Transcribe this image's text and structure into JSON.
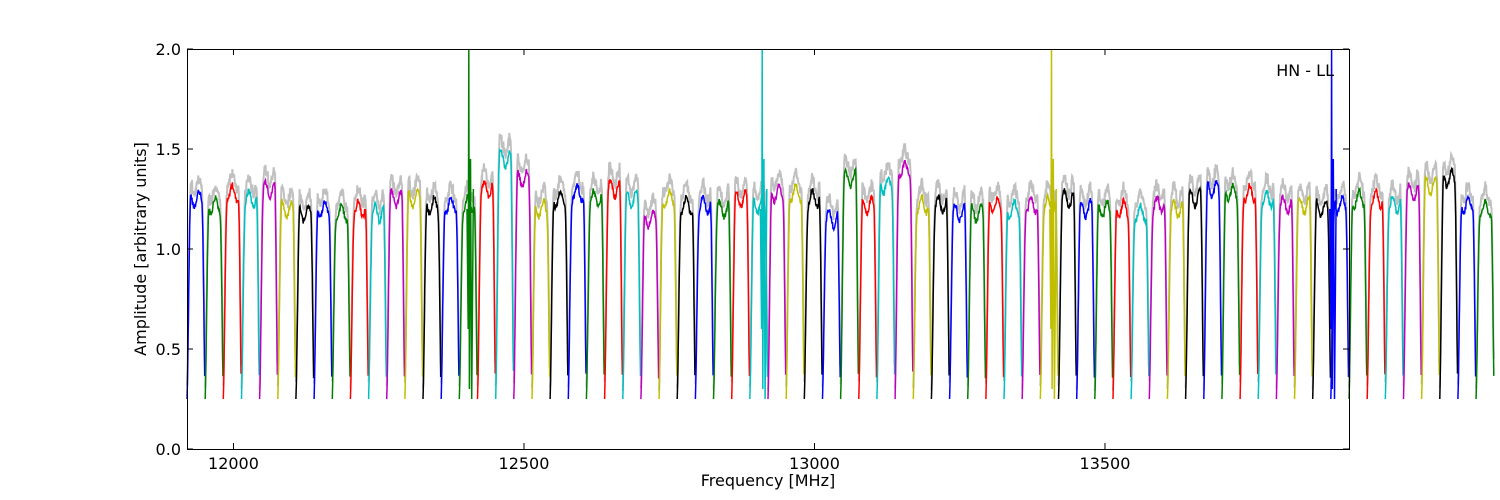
{
  "chart_data": {
    "type": "line",
    "xlabel": "Frequency [MHz]",
    "ylabel": "Amplitude [arbitrary units]",
    "annotation": "HN - LL",
    "xlim": [
      11920,
      13920
    ],
    "ylim": [
      0.0,
      2.0
    ],
    "xticks": [
      12000,
      12500,
      13000,
      13500
    ],
    "yticks": [
      0.0,
      0.5,
      1.0,
      1.5,
      2.0
    ],
    "xtick_labels": [
      "12000",
      "12500",
      "13000",
      "13500"
    ],
    "ytick_labels": [
      "0.0",
      "0.5",
      "1.0",
      "1.5",
      "2.0"
    ],
    "grid": false,
    "background_trace_color": "#c0c0c0",
    "color_cycle": [
      "#0000ff",
      "#007f00",
      "#ff0000",
      "#00bfbf",
      "#bf00bf",
      "#bfbf00",
      "#000000"
    ],
    "channel_width_mhz": 31.25,
    "first_channel_start_mhz": 11920,
    "channel_levels": [
      1.25,
      1.22,
      1.28,
      1.25,
      1.3,
      1.2,
      1.18,
      1.2,
      1.18,
      1.2,
      1.18,
      1.25,
      1.25,
      1.22,
      1.22,
      1.22,
      1.3,
      1.45,
      1.35,
      1.2,
      1.25,
      1.28,
      1.25,
      1.3,
      1.25,
      1.15,
      1.25,
      1.22,
      1.22,
      1.2,
      1.25,
      1.22,
      1.28,
      1.28,
      1.25,
      1.15,
      1.35,
      1.22,
      1.32,
      1.4,
      1.22,
      1.22,
      1.18,
      1.18,
      1.22,
      1.2,
      1.22,
      1.22,
      1.25,
      1.2,
      1.2,
      1.2,
      1.18,
      1.22,
      1.2,
      1.25,
      1.3,
      1.28,
      1.28,
      1.25,
      1.22,
      1.22,
      1.2,
      1.22,
      1.25,
      1.25,
      1.22,
      1.28,
      1.32,
      1.35,
      1.22,
      1.2
    ],
    "spikes": [
      {
        "x": 12405,
        "y": 2.0,
        "color": "#007f00"
      },
      {
        "x": 12910,
        "y": 2.0,
        "color": "#00bfbf"
      },
      {
        "x": 13408,
        "y": 2.0,
        "color": "#bfbf00"
      },
      {
        "x": 13890,
        "y": 2.0,
        "color": "#0000ff"
      }
    ]
  }
}
